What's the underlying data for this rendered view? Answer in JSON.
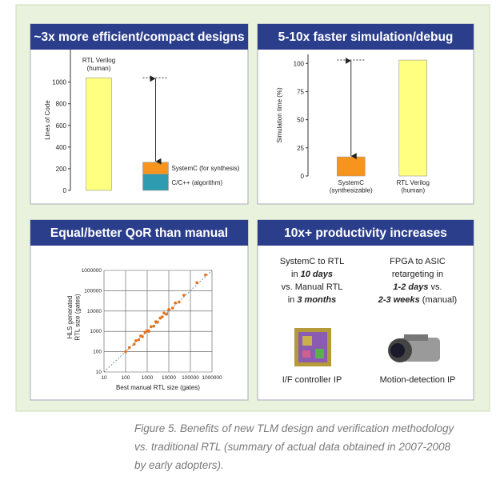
{
  "chart_data": [
    {
      "type": "bar",
      "title": "~3x more efficient/compact designs",
      "y_label": "Lines of Code",
      "categories": [
        null,
        null
      ],
      "series": [
        {
          "name": "RTL Verilog\n(human)",
          "color": "#ffff80",
          "values": [
            1040,
            null
          ]
        },
        {
          "name": "C/C++ (algorithm)",
          "color": "#2e9bb0",
          "values": [
            null,
            150
          ]
        },
        {
          "name": "SystemC (for synthesis)",
          "color": "#f7941d",
          "values": [
            null,
            110
          ]
        }
      ],
      "ylim": [
        0,
        1300
      ],
      "yticks": [
        0,
        200,
        400,
        600,
        800,
        1000
      ]
    },
    {
      "type": "bar",
      "title": "5-10x faster simulation/debug",
      "y_label": "Simulation time (%)",
      "categories": [
        "SystemC\n(synthesizable)",
        "RTL Verilog\n(human)"
      ],
      "values": [
        17,
        103
      ],
      "colors": [
        "#f7941d",
        "#ffff80"
      ],
      "ylim": [
        0,
        108
      ],
      "yticks": [
        0,
        25,
        50,
        75,
        100
      ]
    },
    {
      "type": "scatter",
      "title": "Equal/better QoR than manual",
      "x_label": "Best manual RTL size (gates)",
      "y_label": "HLS generated\nRTL size (gates)",
      "log_scale": true,
      "grid": true,
      "color": "#e8711a",
      "x": [
        100,
        150,
        250,
        300,
        400,
        500,
        600,
        800,
        1000,
        1200,
        1500,
        2000,
        2500,
        3000,
        4000,
        5000,
        6000,
        8000,
        10000,
        15000,
        20000,
        30000,
        50000,
        200000,
        500000
      ],
      "y": [
        100,
        160,
        230,
        350,
        380,
        600,
        550,
        900,
        1100,
        1000,
        1700,
        1800,
        3000,
        2800,
        4500,
        5200,
        8000,
        7000,
        12000,
        14000,
        25000,
        28000,
        60000,
        250000,
        600000
      ],
      "xlim": [
        10,
        1000000
      ],
      "ylim": [
        10,
        1000000
      ],
      "xticks": [
        10,
        100,
        1000,
        10000,
        100000,
        1000000
      ],
      "yticks": [
        10,
        100,
        1000,
        10000,
        100000,
        1000000
      ]
    }
  ],
  "productivity": {
    "title": "10x+ productivity increases",
    "left": {
      "lines": [
        [
          {
            "text": "SystemC to RTL"
          }
        ],
        [
          {
            "text": "in "
          },
          {
            "text": "10 days",
            "emphasis": true
          }
        ],
        [
          {
            "text": "vs. Manual RTL"
          }
        ],
        [
          {
            "text": "in "
          },
          {
            "text": "3 months",
            "emphasis": true
          }
        ]
      ],
      "image_label": "I/F controller IP"
    },
    "right": {
      "lines": [
        [
          {
            "text": "FPGA to ASIC"
          }
        ],
        [
          {
            "text": "retargeting in"
          }
        ],
        [
          {
            "text": "1-2 days",
            "emphasis": true
          },
          {
            "text": " vs."
          }
        ],
        [
          {
            "text": "2-3 weeks",
            "emphasis": true
          },
          {
            "text": " (manual)"
          }
        ]
      ],
      "image_label": "Motion-detection IP"
    }
  },
  "caption": [
    "Figure 5. Benefits of new TLM design and verification methodology",
    "vs. traditional RTL (summary of actual data obtained in 2007-2008",
    "by early adopters)."
  ]
}
